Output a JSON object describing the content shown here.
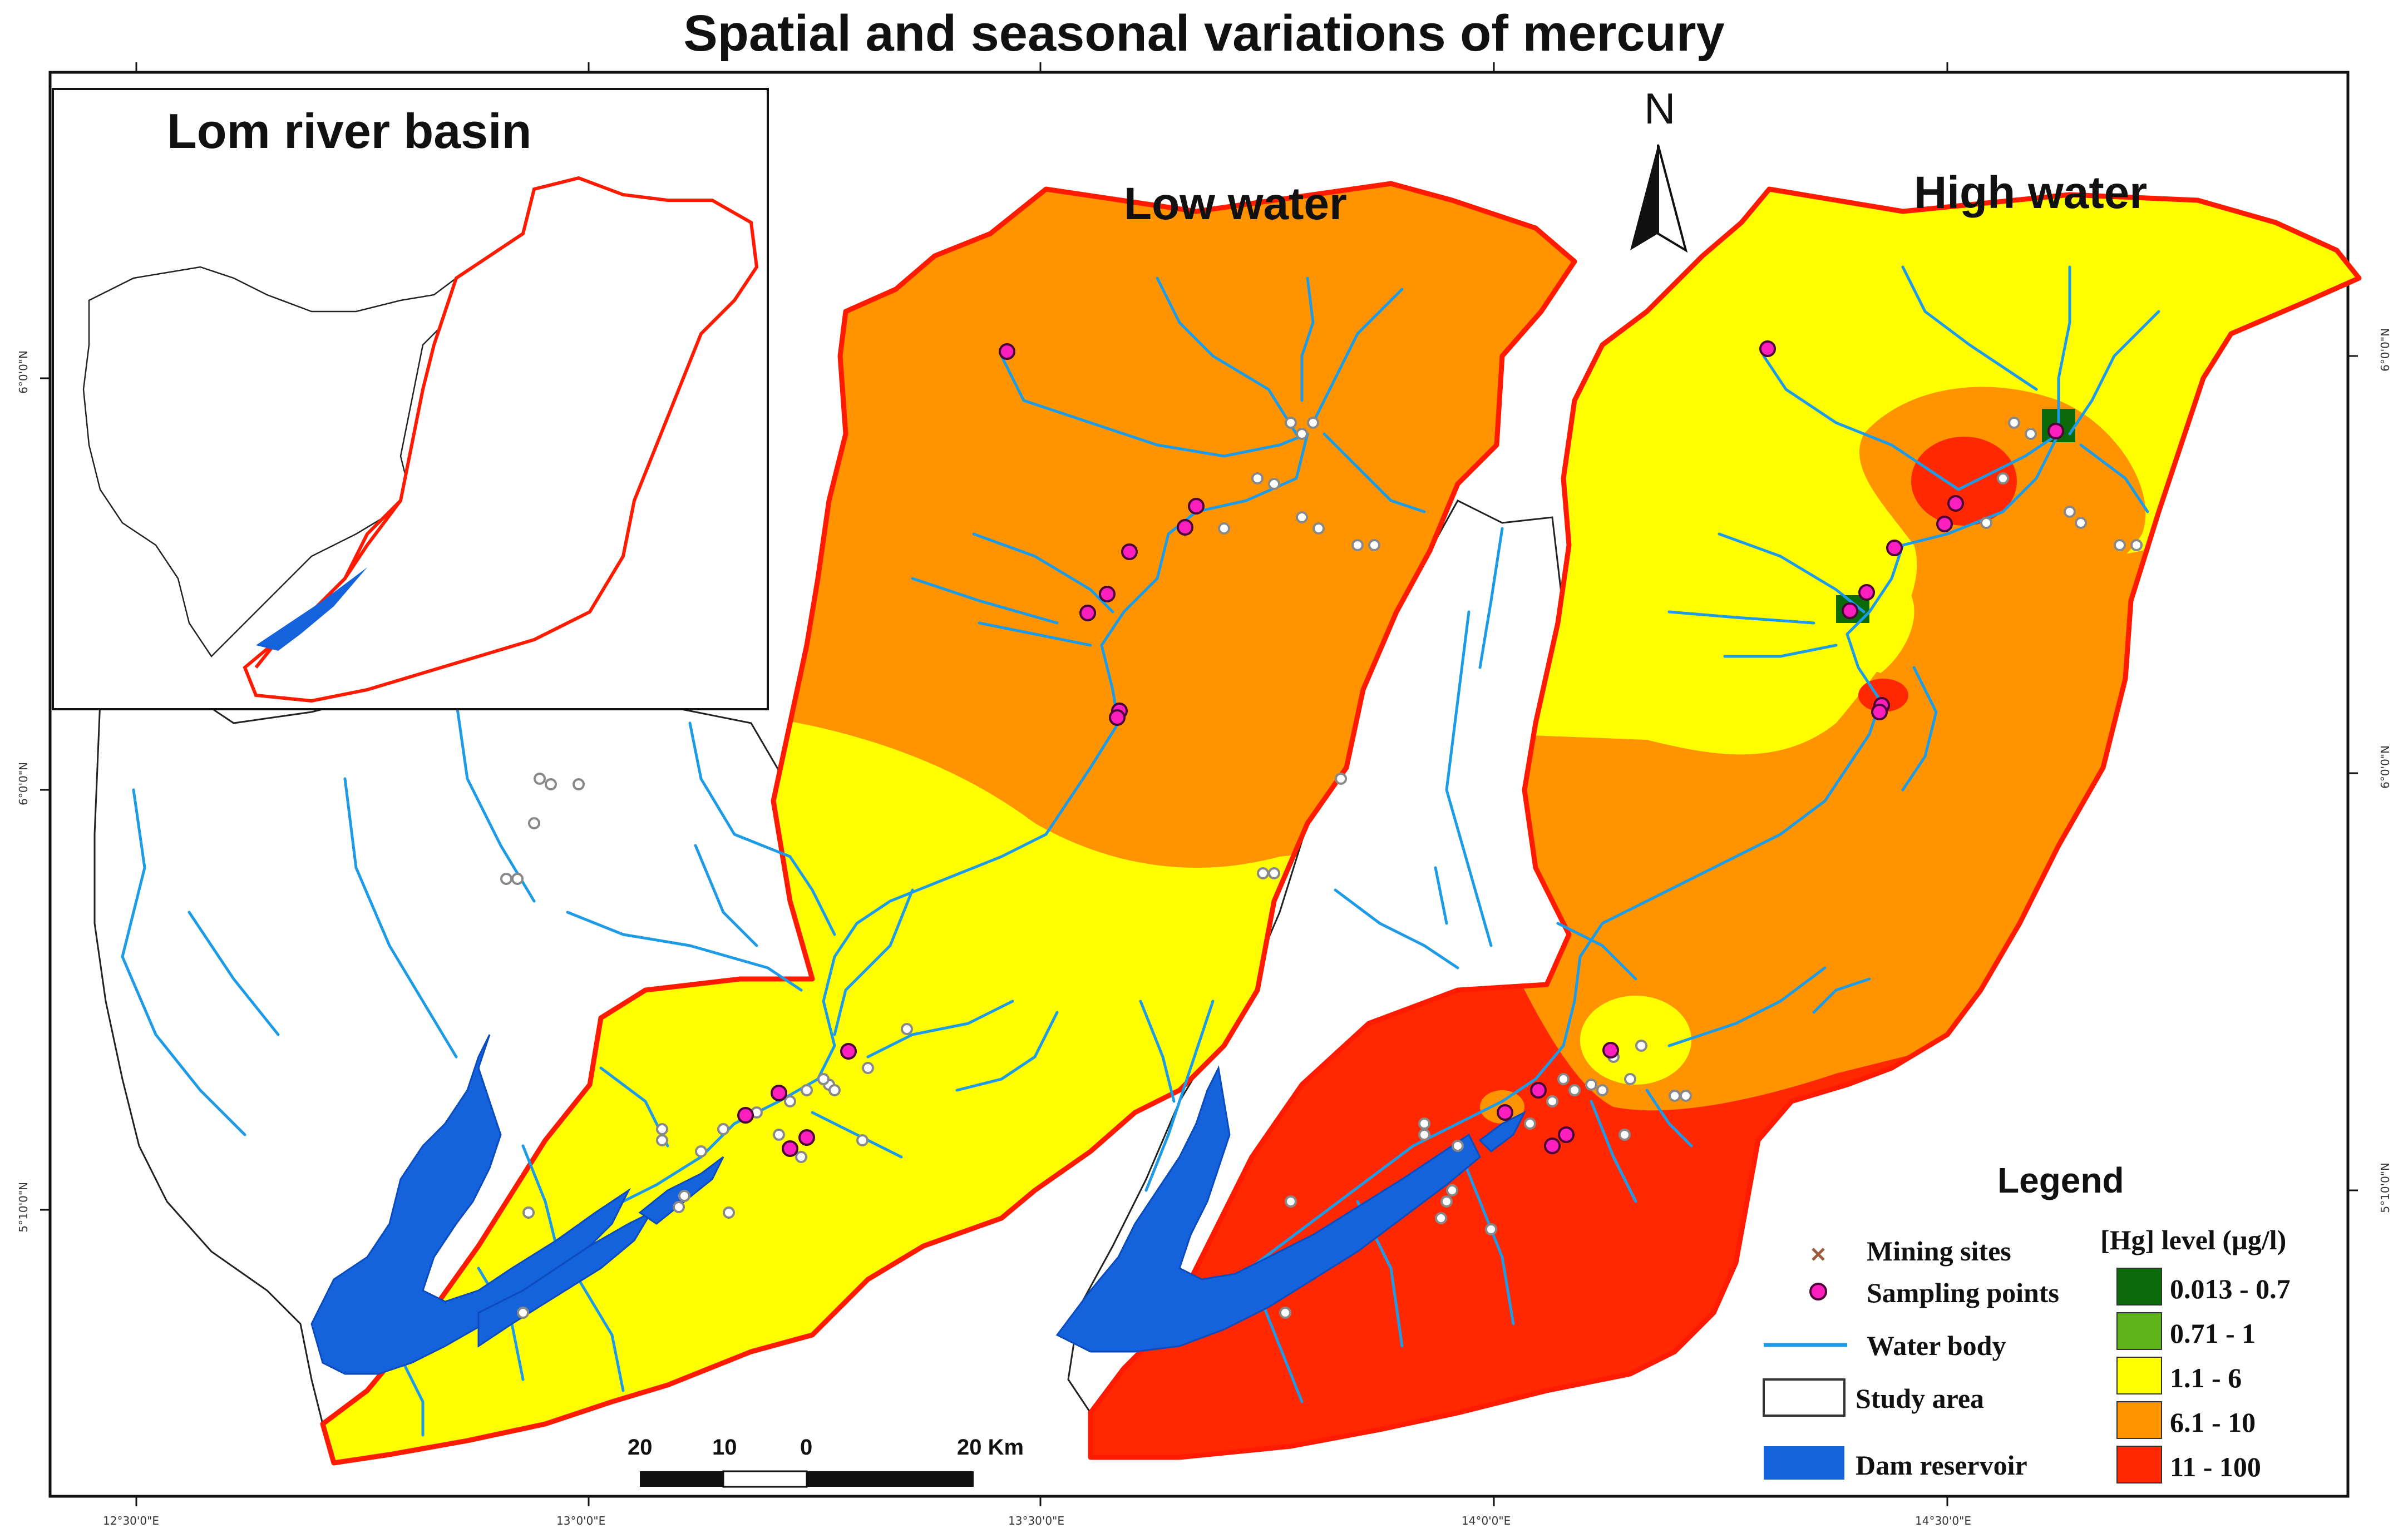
{
  "title": "Spatial and seasonal variations of mercury",
  "panels": {
    "low_label": "Low water",
    "high_label": "High water"
  },
  "inset": {
    "title": "Lom river basin"
  },
  "north_arrow": {
    "label": "N"
  },
  "legend": {
    "title": "Legend",
    "mining_sites": "Mining sites",
    "sampling_points": "Sampling points",
    "water_body": "Water body",
    "study_area": "Study area",
    "dam_reservoir": "Dam reservoir",
    "hg_title": "[Hg] level (µg/l)",
    "classes": [
      {
        "label": "0.013 - 0.7",
        "color": "#0b6b0b"
      },
      {
        "label": "0.71 - 1",
        "color": "#5fb31a"
      },
      {
        "label": "1.1 - 6",
        "color": "#ffff00"
      },
      {
        "label": "6.1 - 10",
        "color": "#ff9400"
      },
      {
        "label": "11 - 100",
        "color": "#ff2800"
      }
    ]
  },
  "colors": {
    "boundary": "#ff1a00",
    "river": "#1e9be6",
    "reservoir": "#1463dc",
    "sampling": "#ff1fbf",
    "mining": "#9a9a9a"
  },
  "scale_bar": {
    "labels": [
      "20",
      "10",
      "0",
      "20 Km"
    ]
  },
  "axes": {
    "bottom_ticks": [
      "12°30'0\"E",
      "13°0'0\"E",
      "13°30'0\"E",
      "14°0'0\"E",
      "14°30'0\"E"
    ],
    "left_ticks": [
      "6°0'0\"N",
      "6°0'0\"N",
      "5°10'0\"N"
    ],
    "right_ticks": [
      "6°0'0\"N",
      "6°0'0\"N",
      "5°10'0\"N"
    ]
  }
}
